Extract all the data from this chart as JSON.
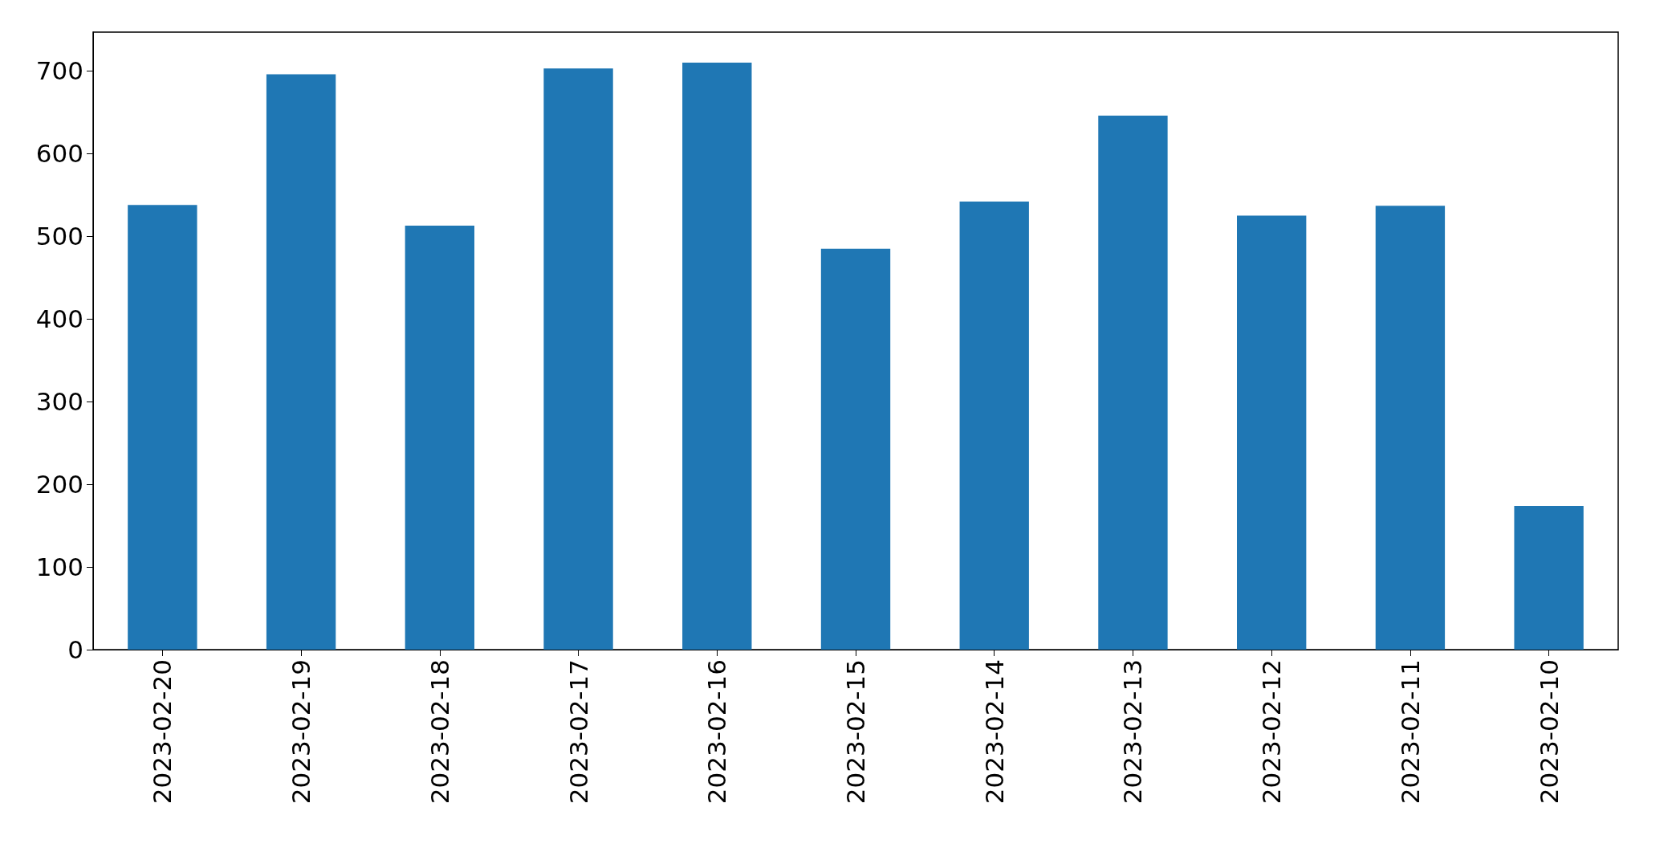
{
  "chart_data": {
    "type": "bar",
    "categories": [
      "2023-02-20",
      "2023-02-19",
      "2023-02-18",
      "2023-02-17",
      "2023-02-16",
      "2023-02-15",
      "2023-02-14",
      "2023-02-13",
      "2023-02-12",
      "2023-02-11",
      "2023-02-10"
    ],
    "values": [
      538,
      696,
      513,
      703,
      710,
      485,
      542,
      646,
      525,
      537,
      174
    ],
    "color": "#1f77b4",
    "ylim": [
      0,
      747
    ],
    "yticks": [
      0,
      100,
      200,
      300,
      400,
      500,
      600,
      700
    ],
    "grid": false
  }
}
